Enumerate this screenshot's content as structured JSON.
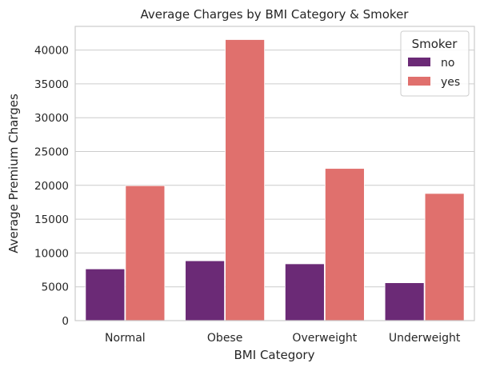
{
  "chart_data": {
    "type": "bar",
    "title": "Average Charges by BMI Category & Smoker",
    "xlabel": "BMI Category",
    "ylabel": "Average Premium Charges",
    "categories": [
      "Normal",
      "Obese",
      "Overweight",
      "Underweight"
    ],
    "series": [
      {
        "name": "no",
        "color": "#6b2a76",
        "values": [
          7650,
          8850,
          8400,
          5600
        ]
      },
      {
        "name": "yes",
        "color": "#e0706d",
        "values": [
          19950,
          41550,
          22500,
          18800
        ]
      }
    ],
    "ylim": [
      0,
      43500
    ],
    "yticks": [
      0,
      5000,
      10000,
      15000,
      20000,
      25000,
      30000,
      35000,
      40000
    ],
    "grid": "horizontal",
    "legend": {
      "title": "Smoker",
      "position": "top-right"
    },
    "colors": {
      "axes_edge": "#cccccc",
      "grid": "#cccccc",
      "text": "#262626"
    }
  }
}
